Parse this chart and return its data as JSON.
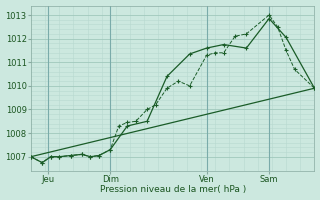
{
  "background_color": "#cce8df",
  "grid_color_major": "#a0c8bc",
  "grid_color_minor": "#b8d8d0",
  "line_color": "#1a5c28",
  "xlabel": "Pression niveau de la mer( hPa )",
  "ylim": [
    1006.4,
    1013.4
  ],
  "xlim": [
    0.0,
    1.0
  ],
  "yticks": [
    1007,
    1008,
    1009,
    1010,
    1011,
    1012,
    1013
  ],
  "xtick_positions": [
    0.06,
    0.28,
    0.62,
    0.84
  ],
  "xtick_labels": [
    "Jeu",
    "Dim",
    "Ven",
    "Sam"
  ],
  "vline_positions": [
    0.06,
    0.28,
    0.62,
    0.84
  ],
  "series1_x": [
    0.0,
    0.04,
    0.07,
    0.1,
    0.14,
    0.18,
    0.21,
    0.24,
    0.28,
    0.31,
    0.34,
    0.37,
    0.41,
    0.44,
    0.48,
    0.52,
    0.56,
    0.62,
    0.65,
    0.68,
    0.72,
    0.76,
    0.84,
    0.87,
    0.9,
    0.93,
    1.0
  ],
  "series1_y": [
    1007.0,
    1006.75,
    1007.0,
    1007.0,
    1007.05,
    1007.1,
    1007.0,
    1007.05,
    1007.3,
    1008.3,
    1008.45,
    1008.5,
    1009.0,
    1009.2,
    1009.9,
    1010.2,
    1010.0,
    1011.3,
    1011.4,
    1011.4,
    1012.1,
    1012.2,
    1013.0,
    1012.5,
    1011.5,
    1010.7,
    1009.9
  ],
  "series2_x": [
    0.0,
    0.04,
    0.07,
    0.1,
    0.14,
    0.18,
    0.21,
    0.24,
    0.28,
    0.34,
    0.41,
    0.48,
    0.56,
    0.62,
    0.68,
    0.76,
    0.84,
    0.9,
    1.0
  ],
  "series2_y": [
    1007.0,
    1006.75,
    1007.0,
    1007.0,
    1007.05,
    1007.1,
    1007.0,
    1007.05,
    1007.3,
    1008.3,
    1008.5,
    1010.4,
    1011.35,
    1011.6,
    1011.75,
    1011.6,
    1012.85,
    1012.05,
    1009.9
  ],
  "series3_x": [
    0.0,
    1.0
  ],
  "series3_y": [
    1007.0,
    1009.9
  ]
}
